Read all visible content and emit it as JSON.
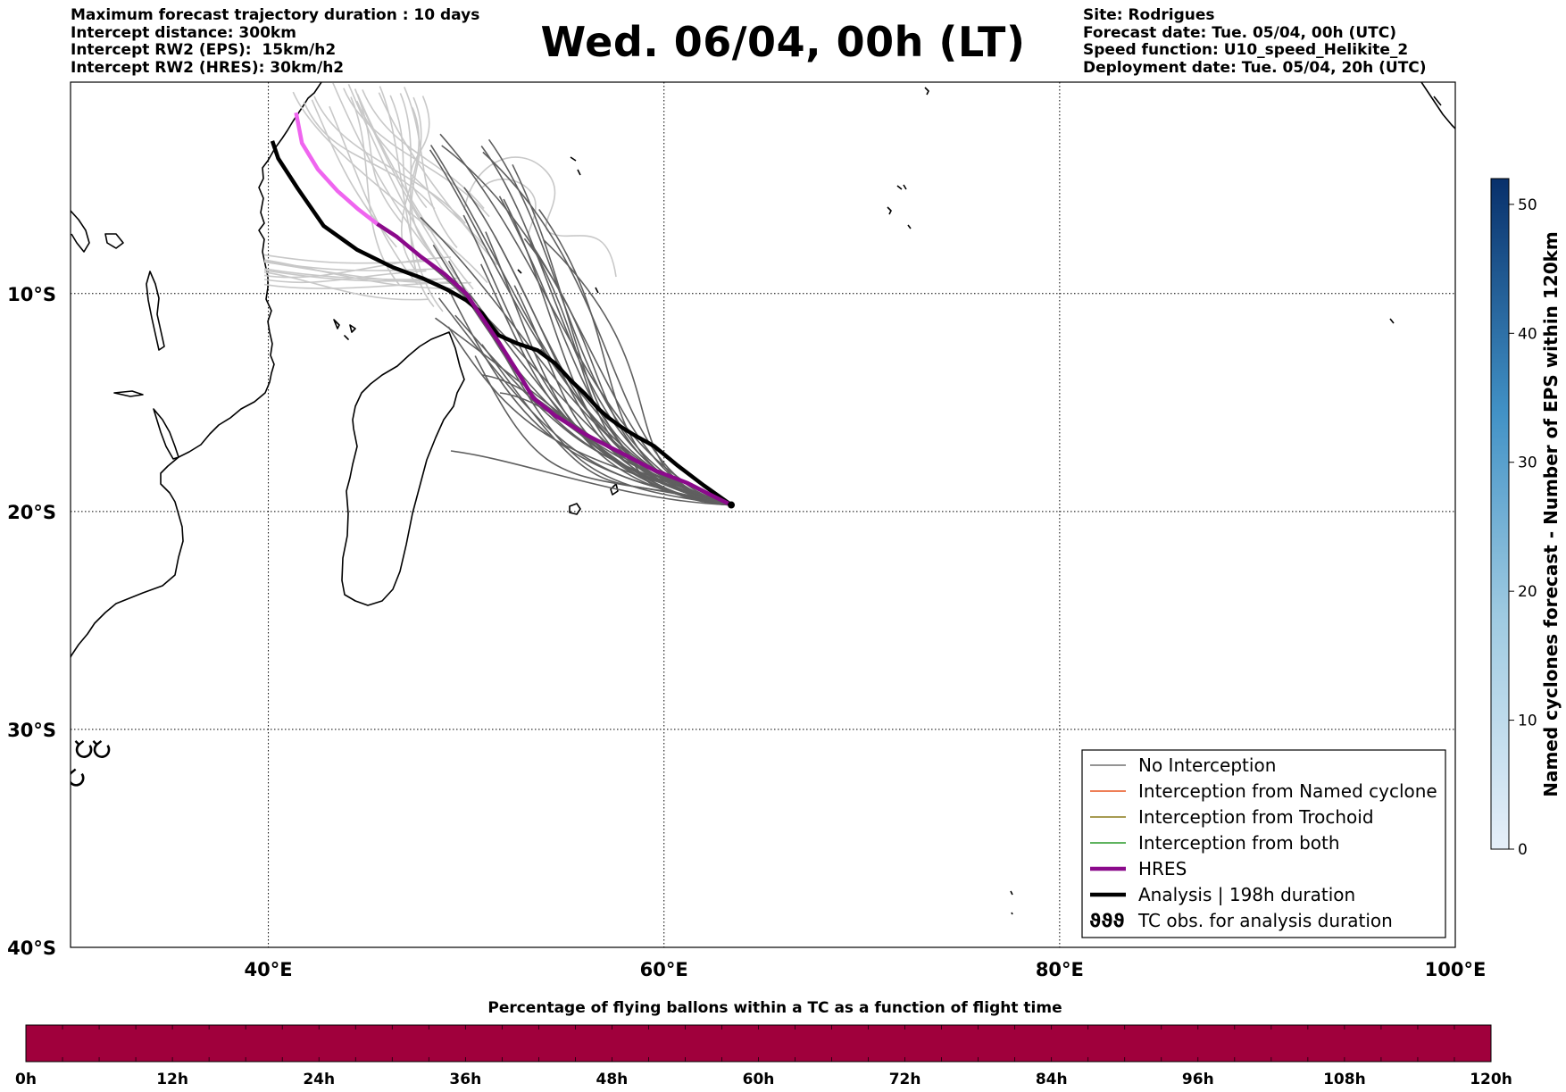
{
  "header": {
    "left_lines": [
      "Maximum forecast trajectory duration : 10 days",
      "Intercept distance: 300km",
      "Intercept RW2 (EPS):  15km/h2",
      "Intercept RW2 (HRES): 30km/h2"
    ],
    "right_lines": [
      "Site: Rodrigues",
      "Forecast date: Tue. 05/04, 00h (UTC)",
      "Speed function: U10_speed_Helikite_2",
      "Deployment date: Tue. 05/04, 20h (UTC)"
    ]
  },
  "title": "Wed. 06/04, 00h (LT)",
  "map": {
    "lon_range": [
      30,
      100
    ],
    "lat_range": [
      -40,
      -0.3
    ],
    "lon_ticks": [
      {
        "value": 40,
        "label": "40°E"
      },
      {
        "value": 60,
        "label": "60°E"
      },
      {
        "value": 80,
        "label": "80°E"
      },
      {
        "value": 100,
        "label": "100°E"
      }
    ],
    "lat_ticks": [
      {
        "value": -10,
        "label": "10°S"
      },
      {
        "value": -20,
        "label": "20°S"
      },
      {
        "value": -30,
        "label": "30°S"
      },
      {
        "value": -40,
        "label": "40°S"
      }
    ],
    "grid": "dotted",
    "origin": {
      "lon": 63.4,
      "lat": -19.7
    },
    "hres_track": [
      [
        63.4,
        -19.7
      ],
      [
        62.5,
        -19.3
      ],
      [
        61.2,
        -18.7
      ],
      [
        59.5,
        -18.1
      ],
      [
        57.8,
        -17.3
      ],
      [
        56.1,
        -16.5
      ],
      [
        54.5,
        -15.6
      ],
      [
        53.4,
        -14.8
      ],
      [
        52.6,
        -13.6
      ],
      [
        51.7,
        -12.3
      ],
      [
        50.8,
        -11.1
      ],
      [
        50.0,
        -10.0
      ],
      [
        48.9,
        -9.1
      ],
      [
        47.7,
        -8.3
      ],
      [
        46.5,
        -7.4
      ],
      [
        45.5,
        -6.8
      ],
      [
        44.5,
        -6.1
      ],
      [
        43.5,
        -5.3
      ],
      [
        42.5,
        -4.3
      ],
      [
        41.7,
        -3.1
      ],
      [
        41.4,
        -1.7
      ]
    ],
    "hres_early_color": "#ef65ef",
    "analysis_track": [
      [
        63.4,
        -19.7
      ],
      [
        62.0,
        -18.8
      ],
      [
        60.7,
        -17.9
      ],
      [
        59.5,
        -17.0
      ],
      [
        58.5,
        -16.5
      ],
      [
        57.8,
        -16.1
      ],
      [
        57.2,
        -15.7
      ],
      [
        56.7,
        -15.3
      ],
      [
        56.0,
        -14.6
      ],
      [
        55.3,
        -14.0
      ],
      [
        54.5,
        -13.2
      ],
      [
        53.6,
        -12.6
      ],
      [
        52.6,
        -12.3
      ],
      [
        51.6,
        -11.9
      ],
      [
        50.8,
        -10.9
      ],
      [
        50.0,
        -10.3
      ],
      [
        49.0,
        -9.8
      ],
      [
        47.8,
        -9.3
      ],
      [
        46.3,
        -8.8
      ],
      [
        44.5,
        -8.0
      ],
      [
        42.8,
        -6.9
      ],
      [
        41.5,
        -5.2
      ],
      [
        40.5,
        -3.8
      ],
      [
        40.2,
        -3.0
      ]
    ],
    "tc_obs_markers": [
      {
        "lon": 30.7,
        "lat": -30.9
      },
      {
        "lon": 31.6,
        "lat": -30.9
      },
      {
        "lon": 30.3,
        "lat": -32.2
      }
    ]
  },
  "legend": {
    "position": "lower-right",
    "items": [
      {
        "label": "No Interception",
        "color": "#707070",
        "kind": "thin"
      },
      {
        "label": "Interception from Named cyclone",
        "color": "#e8541e",
        "kind": "thin"
      },
      {
        "label": "Interception from Trochoid",
        "color": "#8a7a18",
        "kind": "thin"
      },
      {
        "label": "Interception from both",
        "color": "#2a9a2a",
        "kind": "thin"
      },
      {
        "label": "HRES",
        "color": "#8b0a8b",
        "kind": "thick"
      },
      {
        "label": "Analysis | 198h duration",
        "color": "#000000",
        "kind": "thick"
      },
      {
        "label": "TC obs. for analysis duration",
        "color": "#000000",
        "kind": "symbol",
        "symbol": "ϑϑϑ"
      }
    ]
  },
  "colorbar_right": {
    "title": "Named cyclones forecast - Number of EPS within 120km",
    "range": [
      0,
      52
    ],
    "ticks": [
      "0",
      "10",
      "20",
      "30",
      "40",
      "50"
    ],
    "color_low": "#e4eef9",
    "color_high": "#08306b"
  },
  "bottom_bar": {
    "title": "Percentage of flying ballons within a TC as a function of flight time",
    "color": "#a0003c",
    "ticks": [
      "0h",
      "12h",
      "24h",
      "36h",
      "48h",
      "60h",
      "72h",
      "84h",
      "96h",
      "108h",
      "120h"
    ]
  },
  "colors": {
    "ensemble_dark": "#5f5f5f",
    "ensemble_light": "#c8c8c8",
    "grid": "#000000"
  }
}
